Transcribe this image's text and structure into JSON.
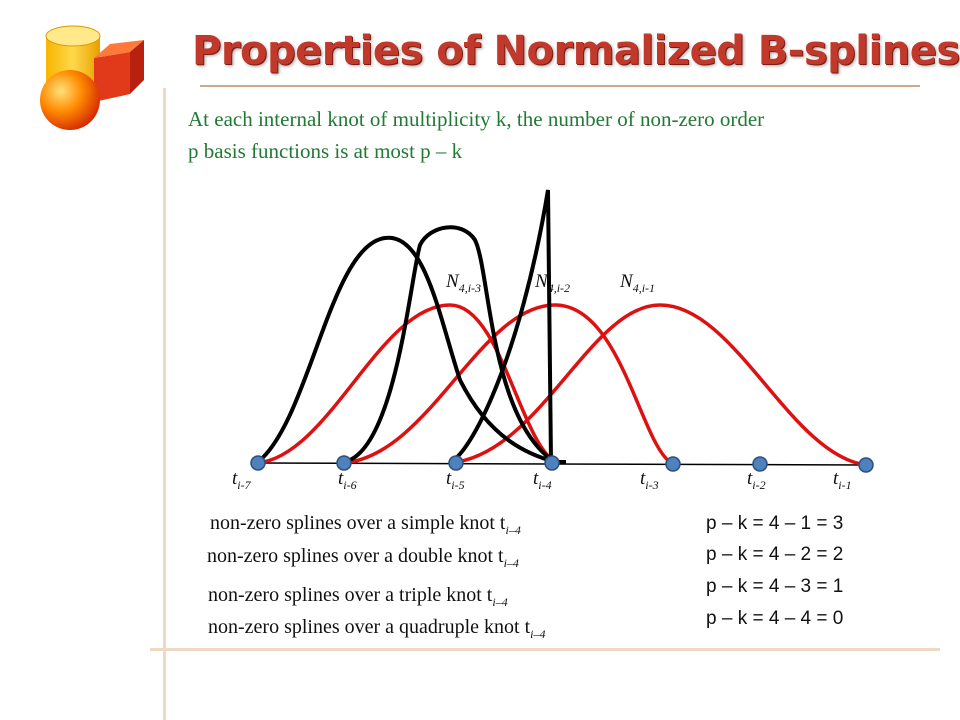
{
  "title": "Properties of Normalized B-splines",
  "subtitle": {
    "line1": "At each internal knot of multiplicity k, the number of non-zero order",
    "line2": "p  basis functions is at most p – k"
  },
  "colors": {
    "title": "#c0392b",
    "subtitle": "#1f7a33",
    "red_curve": "#dd1111",
    "black_curve": "#000000",
    "knot": "#4f81bd"
  },
  "basis_labels": [
    {
      "base": "N",
      "sub": "4,i-3"
    },
    {
      "base": "N",
      "sub": "4,i-2"
    },
    {
      "base": "N",
      "sub": "4,i-1"
    }
  ],
  "knots": [
    {
      "base": "t",
      "sub": "i-7"
    },
    {
      "base": "t",
      "sub": "i-6"
    },
    {
      "base": "t",
      "sub": "i-5"
    },
    {
      "base": "t",
      "sub": "i-4"
    },
    {
      "base": "t",
      "sub": "i-3"
    },
    {
      "base": "t",
      "sub": "i-2"
    },
    {
      "base": "t",
      "sub": "i-1"
    }
  ],
  "captions": [
    {
      "text": "non-zero splines over a simple knot t",
      "sub": "i–4"
    },
    {
      "text": "non-zero splines over a double knot t",
      "sub": "i–4"
    },
    {
      "text": "non-zero splines over a triple knot t",
      "sub": "i–4"
    },
    {
      "text": "non-zero splines over a quadruple knot t",
      "sub": "i–4"
    }
  ],
  "equations": [
    "p – k = 4 – 1 = 3",
    "p – k = 4 – 2 = 2",
    "p – k = 4 – 3 = 1",
    "p – k = 4 – 4 = 0"
  ]
}
